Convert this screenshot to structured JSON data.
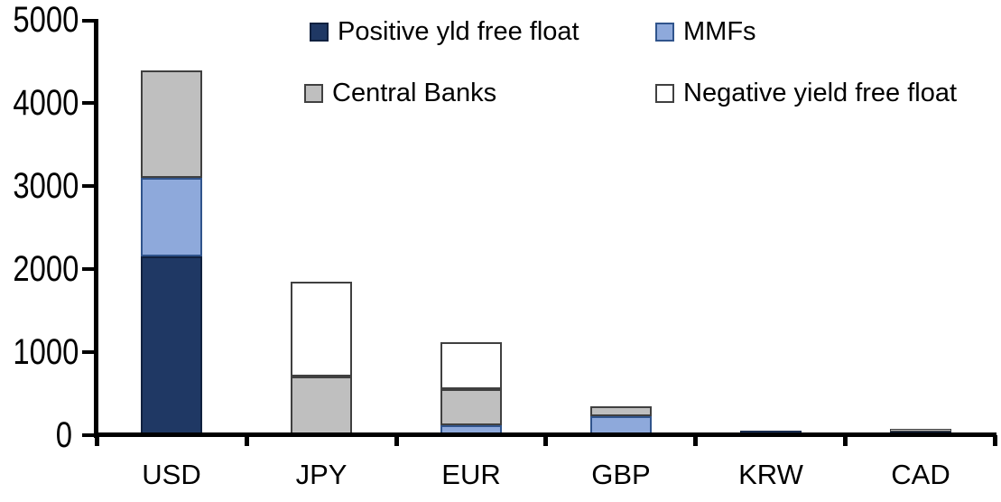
{
  "chart_data": {
    "type": "bar",
    "subtype": "stacked-vertical",
    "title": "",
    "xlabel": "",
    "ylabel": "",
    "categories": [
      "USD",
      "JPY",
      "EUR",
      "GBP",
      "KRW",
      "CAD"
    ],
    "series": [
      {
        "name": "Positive yld free float",
        "color": "#1F3864",
        "border_color": "#10213F",
        "values": [
          2150,
          0,
          0,
          0,
          50,
          40
        ]
      },
      {
        "name": "MMFs",
        "color": "#8EA9DB",
        "border_color": "#30548C",
        "values": [
          950,
          0,
          110,
          220,
          0,
          0
        ]
      },
      {
        "name": "Central Banks",
        "color": "#BFBFBF",
        "border_color": "#404040",
        "values": [
          1300,
          700,
          440,
          120,
          0,
          30
        ]
      },
      {
        "name": "Negative yield free float",
        "color": "#FFFFFF",
        "border_color": "#404040",
        "values": [
          0,
          1150,
          570,
          0,
          0,
          0
        ]
      }
    ],
    "totals": [
      4400,
      1850,
      1120,
      340,
      50,
      70
    ],
    "ylim": [
      0,
      5000
    ],
    "yticks": [
      0,
      1000,
      2000,
      3000,
      4000,
      5000
    ],
    "ytick_labels": [
      "0",
      "1000",
      "2000",
      "3000",
      "4000",
      "5000"
    ],
    "grid": false,
    "legend_position": "top",
    "axis_color": "#000000",
    "background_color": "#FFFFFF"
  }
}
